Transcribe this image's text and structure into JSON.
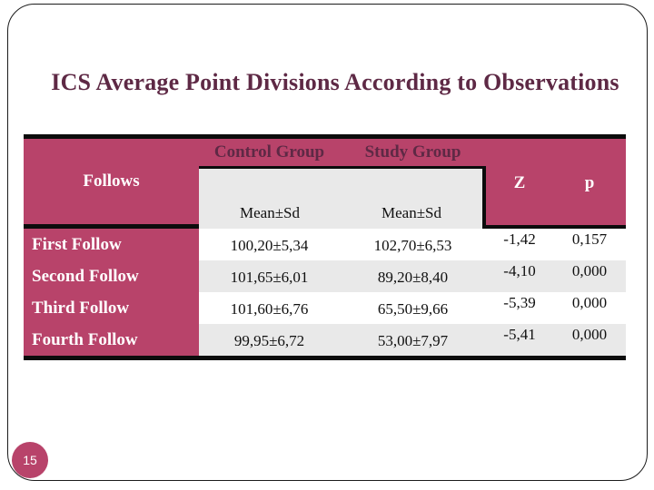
{
  "slide": {
    "title": "ICS Average Point Divisions According to Observations",
    "page_number": "15"
  },
  "colors": {
    "accent_rose": "#b8436a",
    "title_text": "#5e2945",
    "subheader_gray": "#e9e9e9",
    "border_black": "#0c0c0c"
  },
  "table": {
    "group_headers": {
      "control": "Control Group",
      "study": "Study Group"
    },
    "row_header": "Follows",
    "sub_headers": {
      "control": "Mean±Sd",
      "study": "Mean±Sd"
    },
    "z_header": "Z",
    "p_header": "p",
    "rows": [
      {
        "label": "First Follow",
        "control": "100,20±5,34",
        "study": "102,70±6,53",
        "z": "-1,42",
        "p": "0,157"
      },
      {
        "label": "Second Follow",
        "control": "101,65±6,01",
        "study": "89,20±8,40",
        "z": "-4,10",
        "p": "0,000"
      },
      {
        "label": "Third Follow",
        "control": "101,60±6,76",
        "study": "65,50±9,66",
        "z": "-5,39",
        "p": "0,000"
      },
      {
        "label": "Fourth Follow",
        "control": "99,95±6,72",
        "study": "53,00±7,97",
        "z": "-5,41",
        "p": "0,000"
      }
    ]
  }
}
